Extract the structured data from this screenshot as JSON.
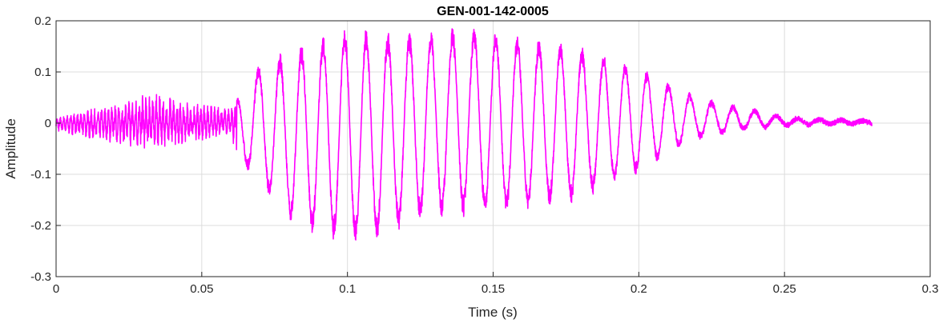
{
  "chart_data": {
    "type": "line",
    "title": "GEN-001-142-0005",
    "xlabel": "Time (s)",
    "ylabel": "Amplitude",
    "xlim": [
      0,
      0.3
    ],
    "ylim": [
      -0.3,
      0.2
    ],
    "xticks": [
      0,
      0.05,
      0.1,
      0.15,
      0.2,
      0.25,
      0.3
    ],
    "xtick_labels": [
      "0",
      "0.05",
      "0.1",
      "0.15",
      "0.2",
      "0.25",
      "0.3"
    ],
    "yticks": [
      -0.3,
      -0.2,
      -0.1,
      0,
      0.1,
      0.2
    ],
    "ytick_labels": [
      "-0.3",
      "-0.2",
      "-0.1",
      "0",
      "0.1",
      "0.2"
    ],
    "grid": true,
    "series": [
      {
        "color": "#ff00ff",
        "x": [
          0.0,
          0.01,
          0.02,
          0.03,
          0.04,
          0.05,
          0.06,
          0.062,
          0.07,
          0.08,
          0.09,
          0.1,
          0.11,
          0.12,
          0.13,
          0.14,
          0.15,
          0.16,
          0.17,
          0.18,
          0.19,
          0.2,
          0.21,
          0.22,
          0.23,
          0.24,
          0.25,
          0.26,
          0.27,
          0.28
        ],
        "upper": [
          0.01,
          0.025,
          0.035,
          0.06,
          0.055,
          0.04,
          0.03,
          0.05,
          0.12,
          0.14,
          0.17,
          0.19,
          0.18,
          0.18,
          0.18,
          0.19,
          0.18,
          0.17,
          0.16,
          0.15,
          0.13,
          0.11,
          0.08,
          0.05,
          0.035,
          0.025,
          0.012,
          0.008,
          0.006,
          0.004
        ],
        "lower": [
          -0.015,
          -0.03,
          -0.04,
          -0.05,
          -0.045,
          -0.035,
          -0.02,
          -0.07,
          -0.12,
          -0.19,
          -0.22,
          -0.23,
          -0.23,
          -0.2,
          -0.18,
          -0.18,
          -0.175,
          -0.17,
          -0.16,
          -0.15,
          -0.12,
          -0.1,
          -0.06,
          -0.03,
          -0.02,
          -0.01,
          -0.005,
          -0.003,
          -0.002,
          -0.001
        ]
      }
    ]
  }
}
